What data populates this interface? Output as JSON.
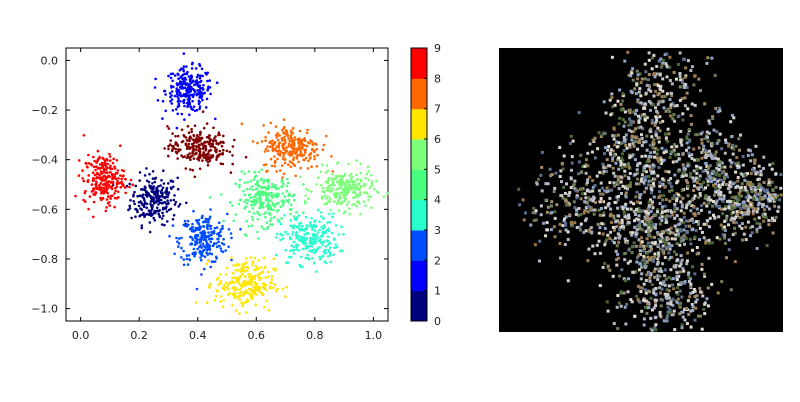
{
  "chart_data": [
    {
      "type": "scatter",
      "title": "",
      "xlabel": "",
      "ylabel": "",
      "xlim": [
        -0.05,
        1.05
      ],
      "ylim": [
        -1.05,
        0.05
      ],
      "xticks": [
        "0.0",
        "0.2",
        "0.4",
        "0.6",
        "0.8",
        "1.0"
      ],
      "yticks": [
        "0.0",
        "−0.2",
        "−0.4",
        "−0.6",
        "−0.8",
        "−1.0"
      ],
      "grid": false,
      "colormap": "jet",
      "colorbar": {
        "range": [
          0,
          9
        ],
        "ticks": [
          "0",
          "1",
          "2",
          "3",
          "4",
          "5",
          "6",
          "7",
          "8",
          "9"
        ]
      },
      "clusters": [
        {
          "label": 0,
          "color": "#00007f",
          "center": [
            0.25,
            -0.56
          ],
          "spread": [
            0.04,
            0.05
          ]
        },
        {
          "label": 1,
          "color": "#0000ff",
          "center": [
            0.37,
            -0.12
          ],
          "spread": [
            0.04,
            0.045
          ]
        },
        {
          "label": 2,
          "color": "#004cff",
          "center": [
            0.42,
            -0.72
          ],
          "spread": [
            0.04,
            0.05
          ]
        },
        {
          "label": 3,
          "color": "#29ffce",
          "center": [
            0.78,
            -0.72
          ],
          "spread": [
            0.05,
            0.05
          ]
        },
        {
          "label": 4,
          "color": "#4aff7f",
          "center": [
            0.63,
            -0.56
          ],
          "spread": [
            0.05,
            0.05
          ]
        },
        {
          "label": 5,
          "color": "#7dff7a",
          "center": [
            0.9,
            -0.52
          ],
          "spread": [
            0.05,
            0.04
          ]
        },
        {
          "label": 6,
          "color": "#ffe500",
          "center": [
            0.56,
            -0.9
          ],
          "spread": [
            0.05,
            0.05
          ]
        },
        {
          "label": 7,
          "color": "#ff6800",
          "center": [
            0.72,
            -0.35
          ],
          "spread": [
            0.05,
            0.045
          ]
        },
        {
          "label": 8,
          "color": "#ff0000",
          "center": [
            0.08,
            -0.48
          ],
          "spread": [
            0.035,
            0.05
          ]
        },
        {
          "label": 9,
          "color": "#7f0000",
          "center": [
            0.4,
            -0.35
          ],
          "spread": [
            0.05,
            0.04
          ]
        }
      ]
    }
  ],
  "image_panel": {
    "background": "#000000"
  }
}
